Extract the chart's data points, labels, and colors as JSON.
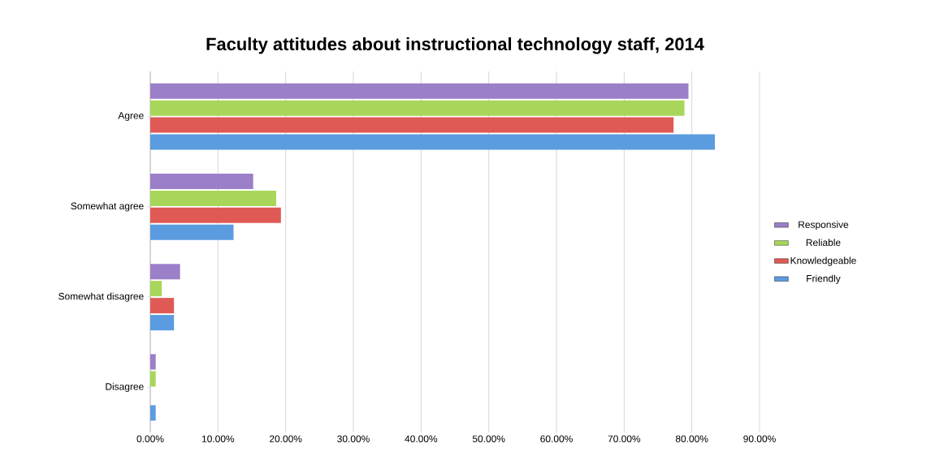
{
  "chart_data": {
    "type": "bar",
    "orientation": "horizontal",
    "title": "Faculty attitudes about instructional technology staff, 2014",
    "categories": [
      "Agree",
      "Somewhat agree",
      "Somewhat disagree",
      "Disagree"
    ],
    "series": [
      {
        "name": "Responsive",
        "color": "#9b7fc8",
        "values": [
          79.5,
          15.2,
          4.4,
          0.8
        ]
      },
      {
        "name": "Reliable",
        "color": "#a8d65a",
        "values": [
          78.9,
          18.6,
          1.7,
          0.8
        ]
      },
      {
        "name": "Knowledgeable",
        "color": "#e05a55",
        "values": [
          77.3,
          19.3,
          3.5,
          0
        ]
      },
      {
        "name": "Friendly",
        "color": "#5b9be0",
        "values": [
          83.4,
          12.3,
          3.5,
          0.8
        ]
      }
    ],
    "xlim": [
      0,
      90
    ],
    "xticks": [
      {
        "value": 0,
        "label": "0.00%"
      },
      {
        "value": 10,
        "label": "10.00%"
      },
      {
        "value": 20,
        "label": "20.00%"
      },
      {
        "value": 30,
        "label": "30.00%"
      },
      {
        "value": 40,
        "label": "40.00%"
      },
      {
        "value": 50,
        "label": "50.00%"
      },
      {
        "value": 60,
        "label": "60.00%"
      },
      {
        "value": 70,
        "label": "70.00%"
      },
      {
        "value": 80,
        "label": "80.00%"
      },
      {
        "value": 90,
        "label": "90.00%"
      }
    ],
    "grid": "x",
    "legend": "right"
  }
}
